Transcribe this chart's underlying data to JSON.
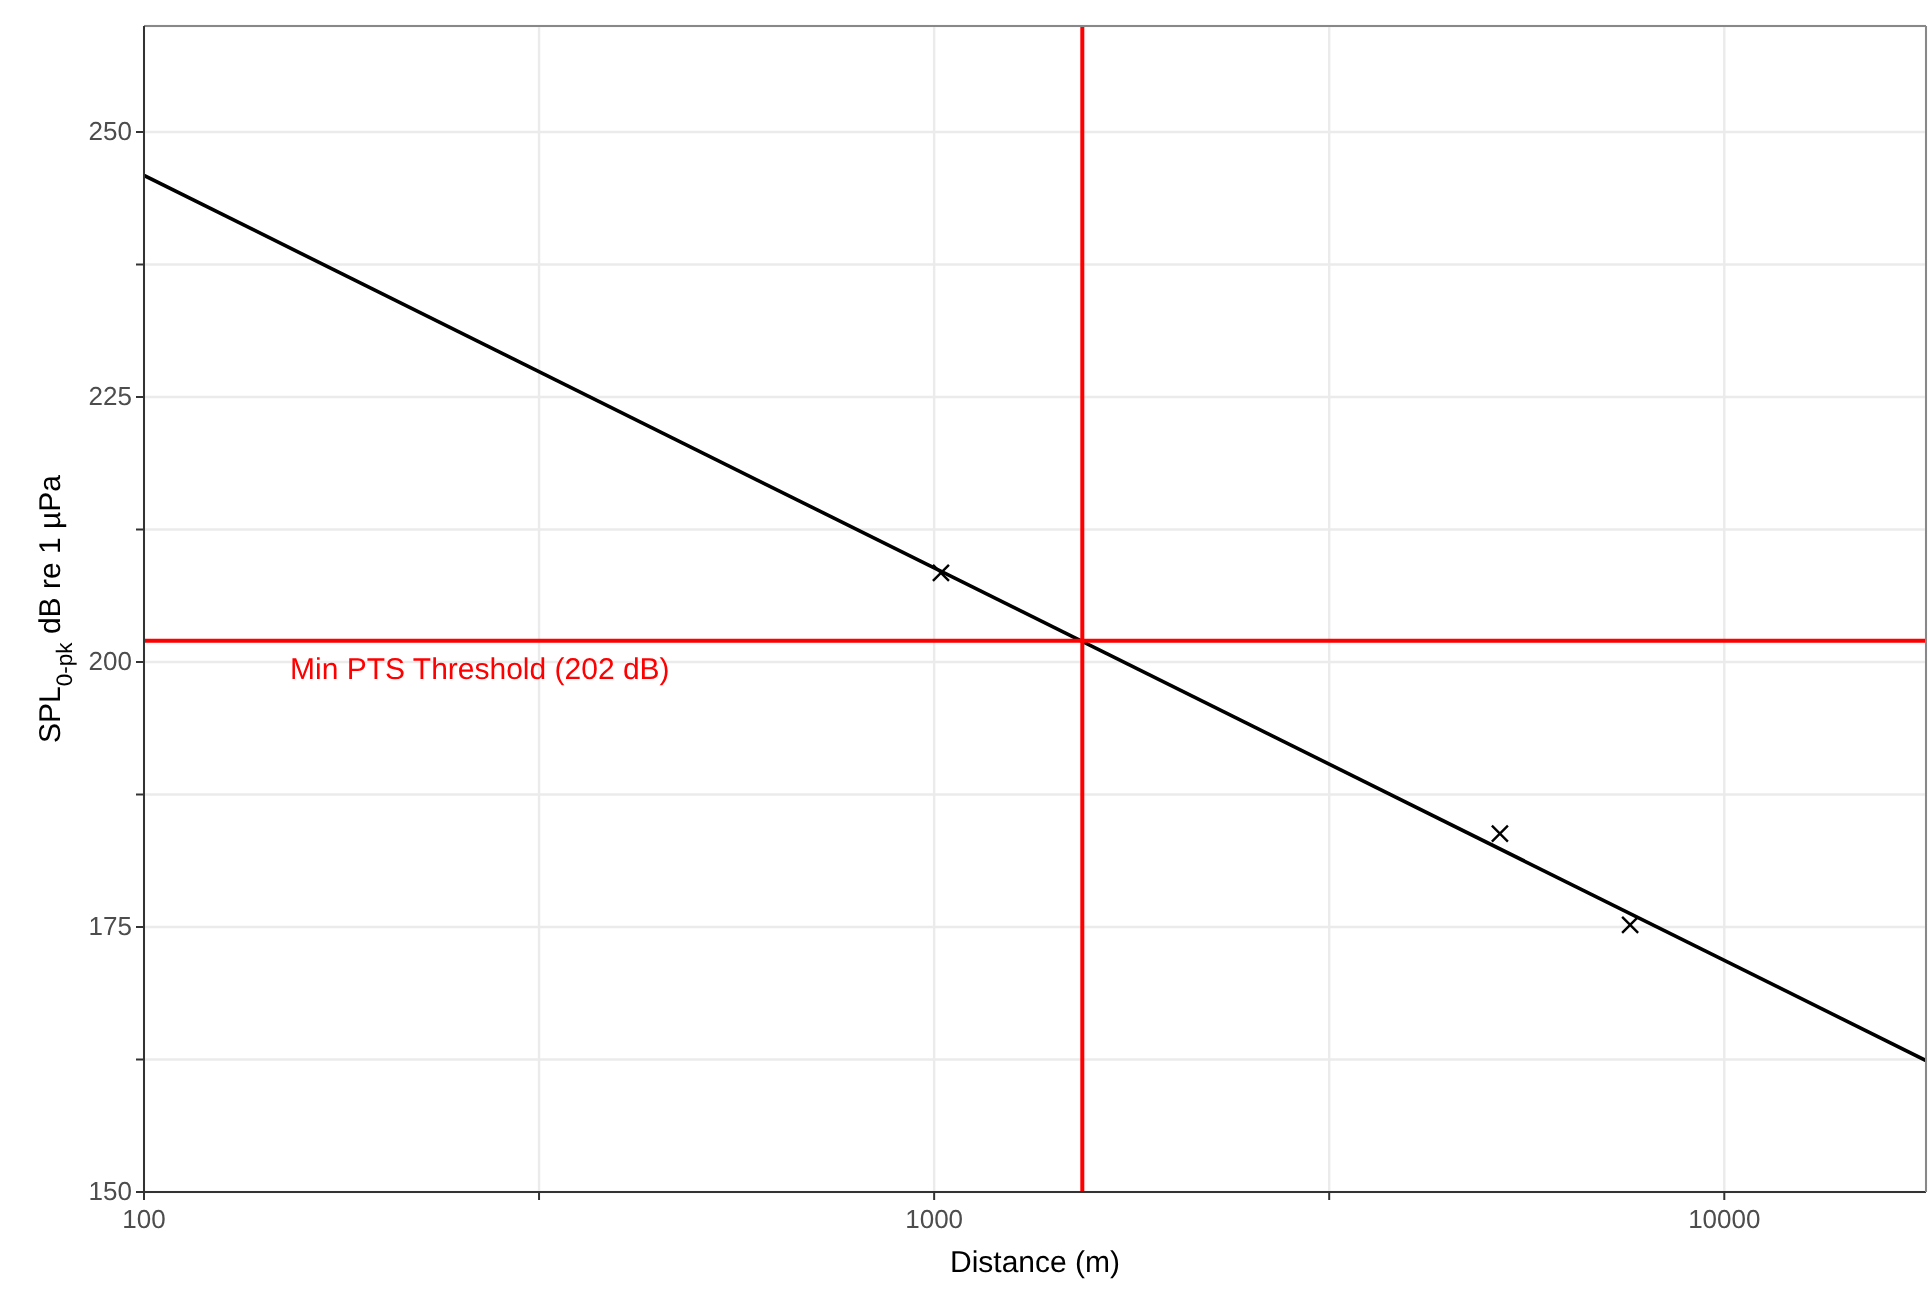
{
  "chart_data": {
    "type": "line",
    "xlabel": "Distance (m)",
    "ylabel": "SPL$_{0-pk}$  dB re 1 µPa",
    "log": "x",
    "grid": true,
    "xlim": [
      100,
      18000
    ],
    "xticks": [
      100,
      {
        "value": 316.2,
        "label": null
      },
      1000,
      {
        "value": 3162,
        "label": null
      },
      10000
    ],
    "ylim": [
      150,
      260
    ],
    "yticks": [
      150,
      {
        "value": 162.5,
        "label": null
      },
      175,
      {
        "value": 187.5,
        "label": null
      },
      200,
      {
        "value": 212.5,
        "label": null
      },
      225,
      {
        "value": 237.5,
        "label": null
      },
      250
    ],
    "series": [
      {
        "type": "line",
        "color": "#000000",
        "x": [
          100,
          18000
        ],
        "values": [
          245.9,
          162.4
        ],
        "marker": "none"
      },
      {
        "type": "scatter",
        "color": "#000000",
        "x": [
          1020,
          5200,
          7600
        ],
        "values": [
          208.4,
          183.8,
          175.2
        ],
        "marker": "cross"
      }
    ],
    "ref_lines": [
      {
        "axis": "y",
        "value": 202,
        "label": "Min PTS Threshold (202 dB)",
        "color": "#ff0000"
      },
      {
        "axis": "x",
        "value": 1540,
        "label": null,
        "color": "#ff0000"
      }
    ]
  }
}
